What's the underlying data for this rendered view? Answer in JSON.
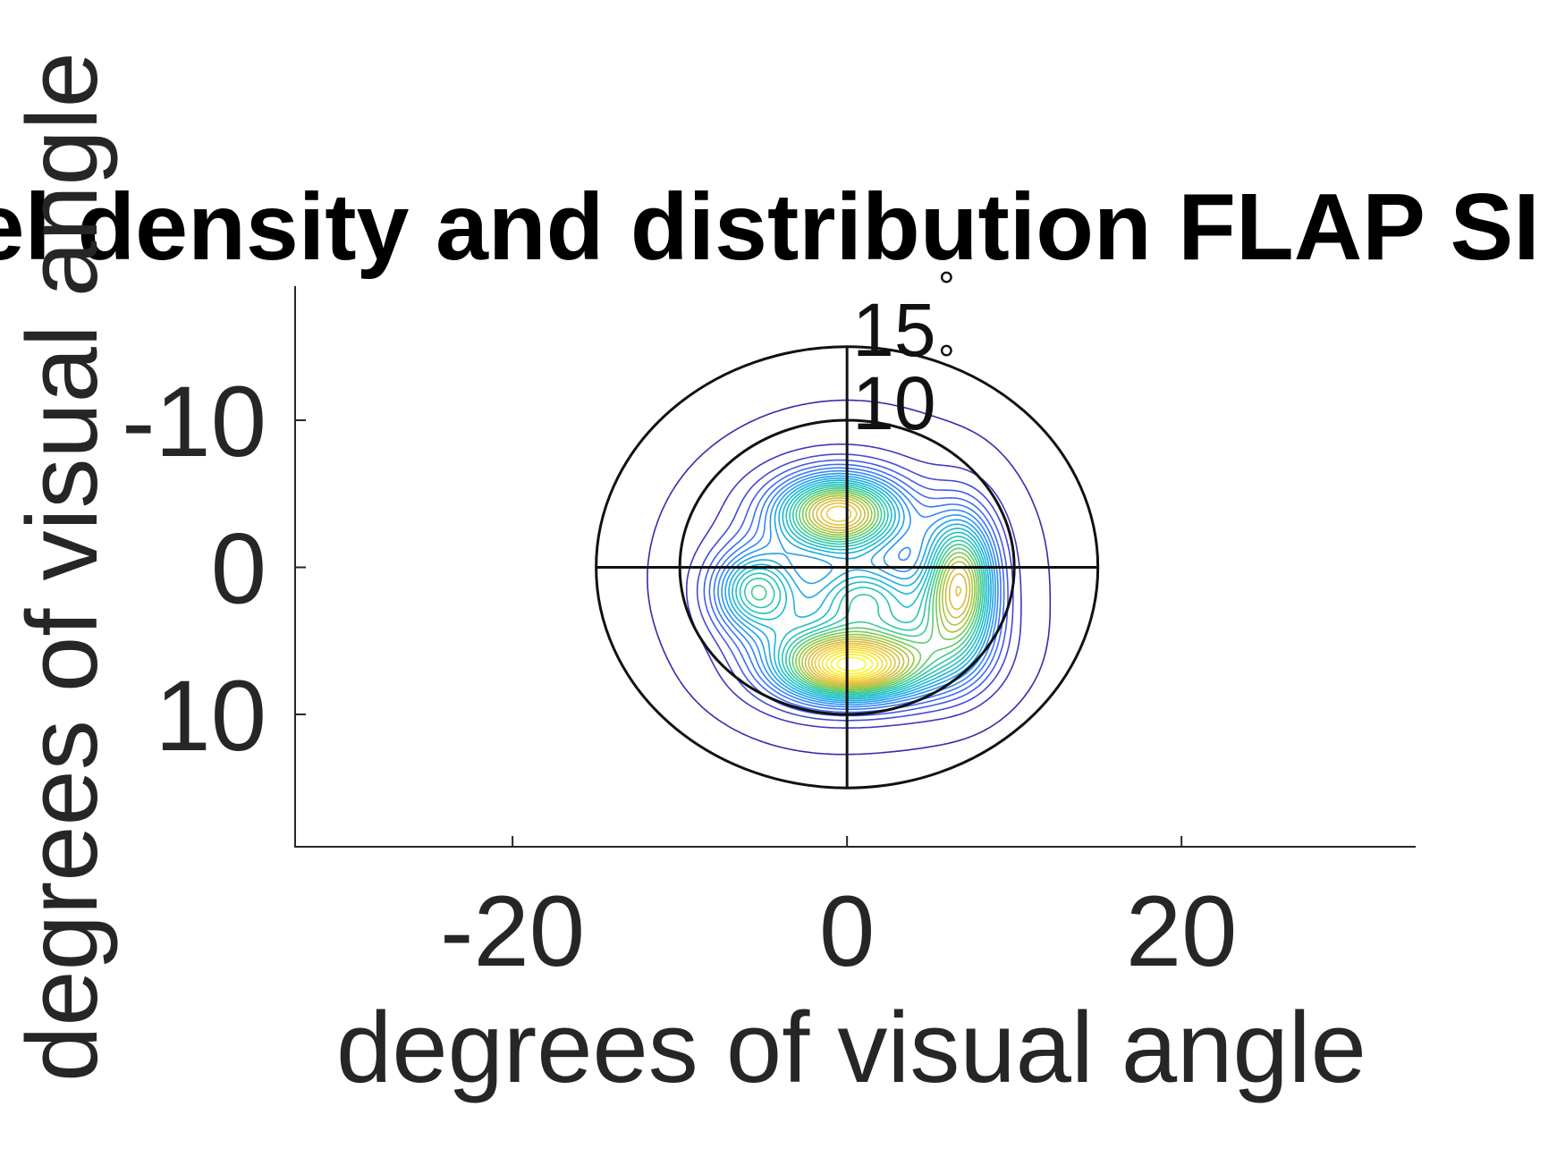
{
  "chart_data": {
    "type": "contour",
    "title": "Kernel density and distribution FLAP SI fixations",
    "xlabel": "degrees of visual angle",
    "ylabel": "degrees of visual angle",
    "xlim": [
      -33,
      34
    ],
    "ylim": [
      19,
      -19
    ],
    "y_reversed": true,
    "xticks": [
      -20,
      0,
      20
    ],
    "xtick_labels": [
      "-20",
      "0",
      "20"
    ],
    "yticks": [
      -10,
      0,
      10
    ],
    "ytick_labels": [
      "-10",
      "0",
      "10"
    ],
    "grid": false,
    "legend": "none",
    "polar_overlay": {
      "rings": [
        10,
        15
      ],
      "ring_labels": [
        "10",
        "15"
      ],
      "degree_symbol": "°",
      "crosshair": true,
      "color": "#111111"
    },
    "density_peaks": [
      {
        "x": -0.5,
        "y": -3.7,
        "sx": 2.6,
        "sy": 1.8,
        "w": 1.0
      },
      {
        "x": 0.5,
        "y": 6.8,
        "sx": 2.8,
        "sy": 1.6,
        "w": 0.95
      },
      {
        "x": 6.8,
        "y": 1.0,
        "sx": 1.5,
        "sy": 3.2,
        "w": 0.9
      },
      {
        "x": -5.5,
        "y": 1.6,
        "sx": 1.8,
        "sy": 2.0,
        "w": 0.62
      },
      {
        "x": 1.0,
        "y": 2.0,
        "sx": 2.2,
        "sy": 1.6,
        "w": 0.45
      },
      {
        "x": 5.0,
        "y": 5.5,
        "sx": 2.6,
        "sy": 2.4,
        "w": 0.35
      },
      {
        "x": -2.0,
        "y": 6.0,
        "sx": 2.8,
        "sy": 2.2,
        "w": 0.35
      },
      {
        "x": 0.0,
        "y": 0.5,
        "sx": 6.5,
        "sy": 6.5,
        "w": 0.22
      }
    ],
    "contour_levels": 28,
    "colormap": [
      "#3e26a8",
      "#4660f3",
      "#2a91f9",
      "#16b8d6",
      "#30ca9c",
      "#93c73d",
      "#e0b93b",
      "#fad92d",
      "#f9fb15"
    ]
  }
}
